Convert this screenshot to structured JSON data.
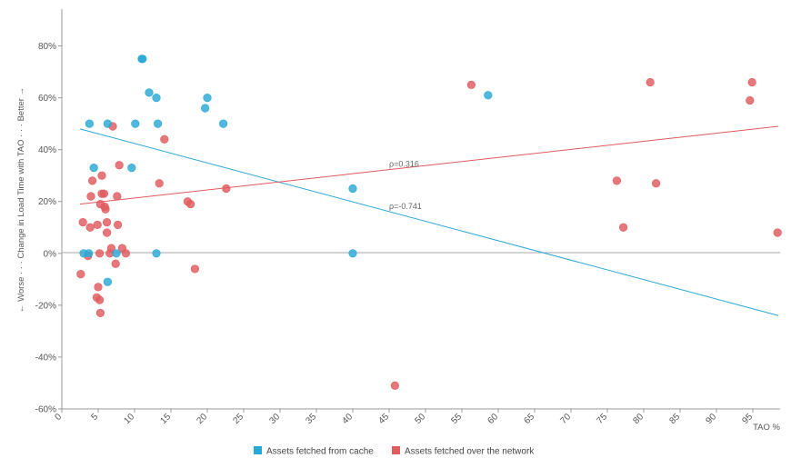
{
  "chart_data": {
    "type": "scatter",
    "xlabel": "TAO %",
    "ylabel": "← Worse · · · Change in Load Time with TAO · · · Better →",
    "x_ticks": [
      "0",
      "5",
      "10",
      "15",
      "20",
      "25",
      "30",
      "35",
      "40",
      "45",
      "50",
      "55",
      "60",
      "65",
      "70",
      "75",
      "80",
      "85",
      "90",
      "95"
    ],
    "y_ticks": [
      "80%",
      "60%",
      "40%",
      "20%",
      "0%",
      "-20%",
      "-40%",
      "-60%"
    ],
    "xlim": [
      0,
      100
    ],
    "ylim": [
      -60,
      90
    ],
    "grid": false,
    "legend_position": "bottom",
    "series": [
      {
        "name": "Assets fetched from cache",
        "color": "#29a8d6",
        "points": [
          [
            3,
            0
          ],
          [
            3.7,
            0
          ],
          [
            3.8,
            50
          ],
          [
            4.4,
            33
          ],
          [
            6.3,
            50
          ],
          [
            6.3,
            -11
          ],
          [
            7.5,
            0
          ],
          [
            9.6,
            33
          ],
          [
            10.1,
            50
          ],
          [
            11,
            75
          ],
          [
            11.1,
            75
          ],
          [
            12,
            62
          ],
          [
            13,
            60
          ],
          [
            13,
            0
          ],
          [
            13.2,
            50
          ],
          [
            19.7,
            56
          ],
          [
            20,
            60
          ],
          [
            22.2,
            50
          ],
          [
            40,
            25
          ],
          [
            40,
            0
          ],
          [
            58.6,
            61
          ]
        ]
      },
      {
        "name": "Assets fetched over the network",
        "color": "#e05a5e",
        "points": [
          [
            2.6,
            -8
          ],
          [
            2.9,
            12
          ],
          [
            3.6,
            -1
          ],
          [
            3.9,
            10
          ],
          [
            4,
            22
          ],
          [
            4.2,
            28
          ],
          [
            4.9,
            11
          ],
          [
            4.8,
            -17
          ],
          [
            5,
            -13
          ],
          [
            5.2,
            -18
          ],
          [
            5.2,
            0
          ],
          [
            5.3,
            19
          ],
          [
            5.3,
            -23
          ],
          [
            5.5,
            30
          ],
          [
            5.5,
            23
          ],
          [
            5.8,
            23
          ],
          [
            5.9,
            18
          ],
          [
            6,
            17
          ],
          [
            6.2,
            12
          ],
          [
            6.2,
            8
          ],
          [
            6.6,
            0
          ],
          [
            6.8,
            2
          ],
          [
            7,
            49
          ],
          [
            7.4,
            -4
          ],
          [
            7.6,
            22
          ],
          [
            7.7,
            11
          ],
          [
            7.9,
            34
          ],
          [
            8.3,
            2
          ],
          [
            8.8,
            0
          ],
          [
            13.4,
            27
          ],
          [
            14.1,
            44
          ],
          [
            17.3,
            20
          ],
          [
            17.7,
            19
          ],
          [
            18.3,
            -6
          ],
          [
            22.6,
            25
          ],
          [
            45.8,
            -51
          ],
          [
            56.3,
            65
          ],
          [
            76.3,
            28
          ],
          [
            77.2,
            10
          ],
          [
            80.9,
            66
          ],
          [
            81.7,
            27
          ],
          [
            94.6,
            59
          ],
          [
            94.9,
            66
          ],
          [
            98.4,
            8
          ]
        ]
      }
    ],
    "trendlines": [
      {
        "series": "Assets fetched from cache",
        "label": "ρ=-0.741",
        "x": [
          2.5,
          98.5
        ],
        "y": [
          48,
          -24
        ]
      },
      {
        "series": "Assets fetched over the network",
        "label": "ρ=0.316",
        "x": [
          2.5,
          98.5
        ],
        "y": [
          19,
          49
        ]
      }
    ]
  }
}
